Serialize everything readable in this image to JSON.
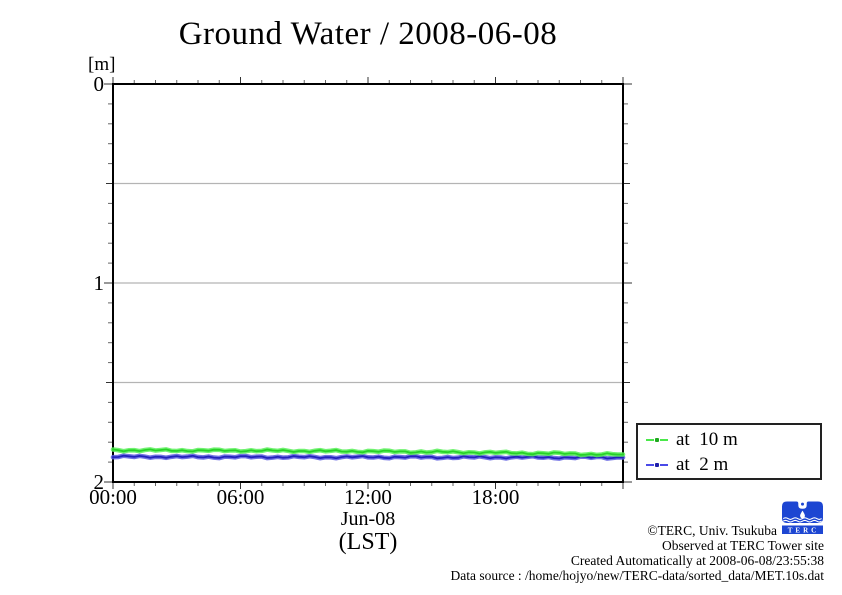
{
  "title": "Ground Water / 2008-06-08",
  "y_unit_label": "[m]",
  "axis_labels": {
    "x_date": "Jun-08",
    "x_timezone": "(LST)"
  },
  "legend": {
    "items": [
      {
        "label": "at  10 m",
        "sample_color": "#4ae84a",
        "dot_color": "#1fa91f"
      },
      {
        "label": "at  2 m",
        "sample_color": "#4a4ae8",
        "dot_color": "#1f1fa9"
      }
    ]
  },
  "footer": {
    "lines": [
      "©TERC, Univ. Tsukuba",
      "Observed at TERC Tower site",
      "Created Automatically at 2008-06-08/23:55:38",
      "Data source : /home/hojyo/new/TERC-data/sorted_data/MET.10s.dat"
    ],
    "logo_text": "TERC",
    "logo_color": "#1d46d2"
  },
  "chart_data": {
    "type": "line",
    "title": "Ground Water / 2008-06-08",
    "x_axis_label": "Jun-08 (LST)",
    "y_axis_unit": "[m]",
    "x_range": [
      0,
      24
    ],
    "y_range": [
      0,
      2
    ],
    "y_axis_inverted_depth": true,
    "x_minor_step_hours": 1,
    "y_minor_step": 0.1,
    "x_ticks": [
      {
        "hour": 0,
        "label": "00:00"
      },
      {
        "hour": 6,
        "label": "06:00"
      },
      {
        "hour": 12,
        "label": "12:00"
      },
      {
        "hour": 18,
        "label": "18:00"
      }
    ],
    "y_ticks": [
      {
        "value": 0,
        "label": "0"
      },
      {
        "value": 1,
        "label": "1"
      },
      {
        "value": 2,
        "label": "2"
      }
    ],
    "y_grid": [
      0.5,
      1.0,
      1.5
    ],
    "grid_color": "#b4b4b4",
    "legend_position": "outside-right-bottom",
    "x_hours": [
      0,
      1,
      2,
      3,
      4,
      5,
      6,
      7,
      8,
      9,
      10,
      11,
      12,
      13,
      14,
      15,
      16,
      17,
      18,
      19,
      20,
      21,
      22,
      23,
      24
    ],
    "series": [
      {
        "name": "at 10 m",
        "color": "#28d228",
        "halo": "#58f058",
        "values": [
          1.84,
          1.84,
          1.841,
          1.841,
          1.842,
          1.842,
          1.842,
          1.843,
          1.843,
          1.844,
          1.845,
          1.845,
          1.846,
          1.847,
          1.848,
          1.849,
          1.85,
          1.851,
          1.853,
          1.854,
          1.856,
          1.857,
          1.859,
          1.861,
          1.862
        ]
      },
      {
        "name": "at 2 m",
        "color": "#2323bb",
        "halo": "#5a5ae0",
        "values": [
          1.873,
          1.873,
          1.873,
          1.874,
          1.874,
          1.874,
          1.874,
          1.874,
          1.875,
          1.875,
          1.875,
          1.875,
          1.875,
          1.875,
          1.875,
          1.876,
          1.876,
          1.876,
          1.876,
          1.876,
          1.876,
          1.877,
          1.877,
          1.877,
          1.877
        ]
      }
    ]
  }
}
